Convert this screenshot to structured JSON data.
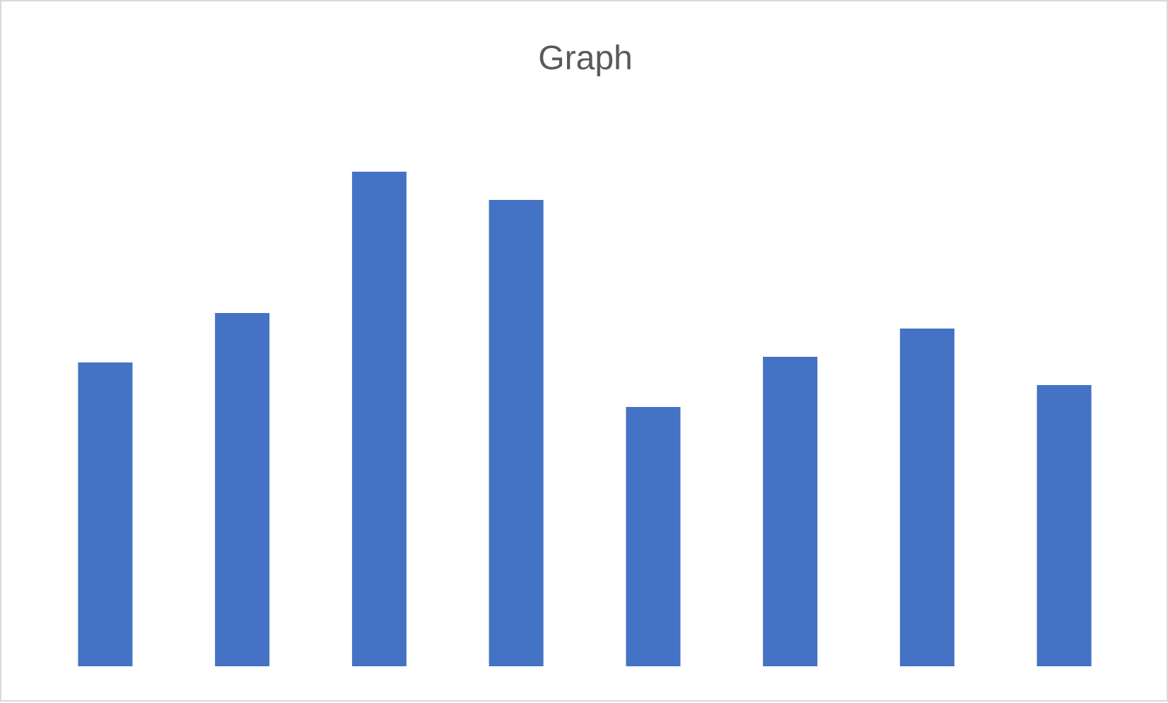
{
  "chart_data": {
    "type": "bar",
    "title": "Graph",
    "categories": [
      "",
      "",
      "",
      "",
      "",
      "",
      "",
      ""
    ],
    "values": [
      43,
      50,
      70,
      66,
      36.7,
      43.8,
      47.8,
      39.8
    ],
    "ylim": [
      0,
      80
    ],
    "grid": false,
    "legend": "none",
    "bar_color": "#4472c4"
  }
}
